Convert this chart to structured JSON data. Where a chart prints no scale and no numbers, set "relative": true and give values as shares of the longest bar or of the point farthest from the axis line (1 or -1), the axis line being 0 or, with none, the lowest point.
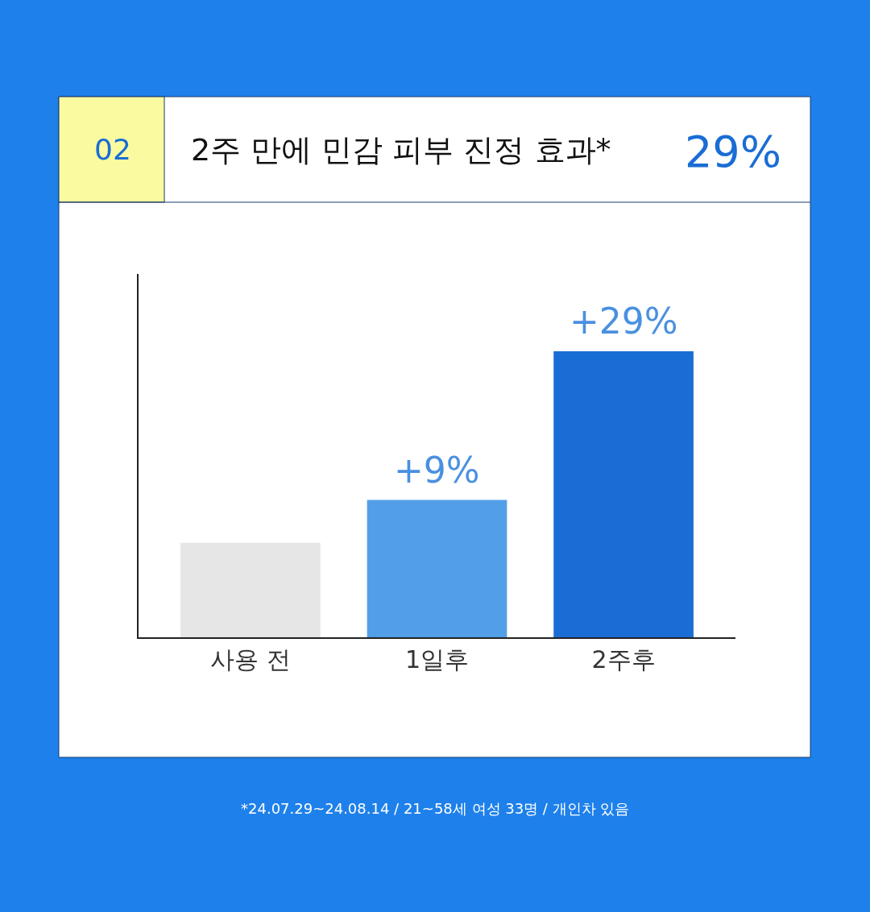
{
  "chart_data": {
    "type": "bar",
    "title": "2주 만에 민감 피부 진정 효과*",
    "categories": [
      "사용 전",
      "1일후",
      "2주후"
    ],
    "values": [
      0.33,
      0.48,
      1
    ],
    "colors": [
      "#e6e6e6",
      "#529fe8",
      "#1a6dd4"
    ],
    "relative": true,
    "annotations": [
      "02",
      "29%",
      "*24.07.29~24.08.14 / 21~58세 여성 33명 / 개인차 있음",
      {
        "text": "+9%",
        "x": "1일후",
        "y": 0.48
      },
      {
        "text": "+29%",
        "x": "2주후",
        "y": 1
      }
    ]
  }
}
